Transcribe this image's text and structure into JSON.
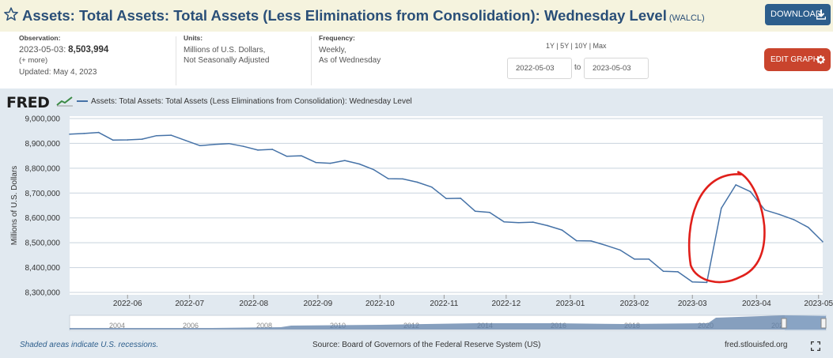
{
  "header": {
    "title": "Assets: Total Assets: Total Assets (Less Eliminations from Consolidation): Wednesday Level",
    "series_id": "(WALCL)",
    "download_label": "DOWNLOAD",
    "star_icon": "star-icon",
    "download_icon": "download-icon"
  },
  "meta": {
    "observation_label": "Observation:",
    "observation_date": "2023-05-03:",
    "observation_value": "8,503,994",
    "more": "(+ more)",
    "updated": "Updated: May 4, 2023",
    "units_label": "Units:",
    "units_line1": "Millions of U.S. Dollars,",
    "units_line2": "Not Seasonally Adjusted",
    "frequency_label": "Frequency:",
    "frequency_line1": "Weekly,",
    "frequency_line2": "As of Wednesday"
  },
  "controls": {
    "range_links": "1Y | 5Y | 10Y | Max",
    "start_date": "2022-05-03",
    "to": "to",
    "end_date": "2023-05-03",
    "edit_label": "EDIT GRAPH",
    "gear_icon": "gear-icon"
  },
  "chart_panel": {
    "logo": "FRED",
    "legend": "Assets: Total Assets: Total Assets (Less Eliminations from Consolidation): Wednesday Level",
    "recession_note": "Shaded areas indicate U.S. recessions.",
    "source": "Source: Board of Governors of the Federal Reserve System (US)",
    "site": "fred.stlouisfed.org",
    "fullscreen_icon": "fullscreen-icon"
  },
  "colors": {
    "line": "#4572a7",
    "annotation": "#e0201b",
    "navigator_fill": "#5d7fa8",
    "grid": "#c8d3dd"
  },
  "chart_data": {
    "type": "line",
    "ylabel": "Millions of U.S. Dollars",
    "ylim": [
      8300000,
      9000000
    ],
    "yticks": [
      "8,300,000",
      "8,400,000",
      "8,500,000",
      "8,600,000",
      "8,700,000",
      "8,800,000",
      "8,900,000",
      "9,000,000"
    ],
    "ytick_values": [
      8300000,
      8400000,
      8500000,
      8600000,
      8700000,
      8800000,
      8900000,
      9000000
    ],
    "xlim": [
      "2022-05-04",
      "2023-05-03"
    ],
    "xticks": [
      "2022-06",
      "2022-07",
      "2022-08",
      "2022-09",
      "2022-10",
      "2022-11",
      "2022-12",
      "2023-01",
      "2023-02",
      "2023-03",
      "2023-04",
      "2023-05"
    ],
    "xtick_dates": [
      "2022-06-01",
      "2022-07-01",
      "2022-08-01",
      "2022-09-01",
      "2022-10-01",
      "2022-11-01",
      "2022-12-01",
      "2023-01-01",
      "2023-02-01",
      "2023-03-01",
      "2023-04-01",
      "2023-05-01"
    ],
    "grid": true,
    "legend_placement": "top-left",
    "series": [
      {
        "name": "Assets: Total Assets: Total Assets (Less Eliminations from Consolidation): Wednesday Level",
        "x": [
          "2022-05-04",
          "2022-05-11",
          "2022-05-18",
          "2022-05-25",
          "2022-06-01",
          "2022-06-08",
          "2022-06-15",
          "2022-06-22",
          "2022-06-29",
          "2022-07-06",
          "2022-07-13",
          "2022-07-20",
          "2022-07-27",
          "2022-08-03",
          "2022-08-10",
          "2022-08-17",
          "2022-08-24",
          "2022-08-31",
          "2022-09-07",
          "2022-09-14",
          "2022-09-21",
          "2022-09-28",
          "2022-10-05",
          "2022-10-12",
          "2022-10-19",
          "2022-10-26",
          "2022-11-02",
          "2022-11-09",
          "2022-11-16",
          "2022-11-23",
          "2022-11-30",
          "2022-12-07",
          "2022-12-14",
          "2022-12-21",
          "2022-12-28",
          "2023-01-04",
          "2023-01-11",
          "2023-01-18",
          "2023-01-25",
          "2023-02-01",
          "2023-02-08",
          "2023-02-15",
          "2023-02-22",
          "2023-03-01",
          "2023-03-08",
          "2023-03-15",
          "2023-03-22",
          "2023-03-29",
          "2023-04-05",
          "2023-04-12",
          "2023-04-19",
          "2023-04-26",
          "2023-05-03"
        ],
        "values": [
          8937000,
          8940000,
          8944000,
          8913000,
          8914000,
          8917000,
          8931000,
          8933000,
          8912000,
          8891000,
          8896000,
          8899000,
          8888000,
          8873000,
          8876000,
          8848000,
          8850000,
          8823000,
          8820000,
          8831000,
          8817000,
          8794000,
          8758000,
          8757000,
          8744000,
          8724000,
          8678000,
          8679000,
          8627000,
          8622000,
          8584000,
          8581000,
          8583000,
          8569000,
          8551000,
          8508000,
          8507000,
          8490000,
          8471000,
          8434000,
          8434000,
          8385000,
          8383000,
          8342000,
          8340000,
          8639000,
          8733000,
          8706000,
          8632000,
          8614000,
          8593000,
          8562000,
          8503994
        ]
      }
    ],
    "navigator": {
      "xticks": [
        "2004",
        "2006",
        "2008",
        "2010",
        "2012",
        "2014",
        "2016",
        "2018",
        "2020",
        "2022"
      ]
    }
  }
}
